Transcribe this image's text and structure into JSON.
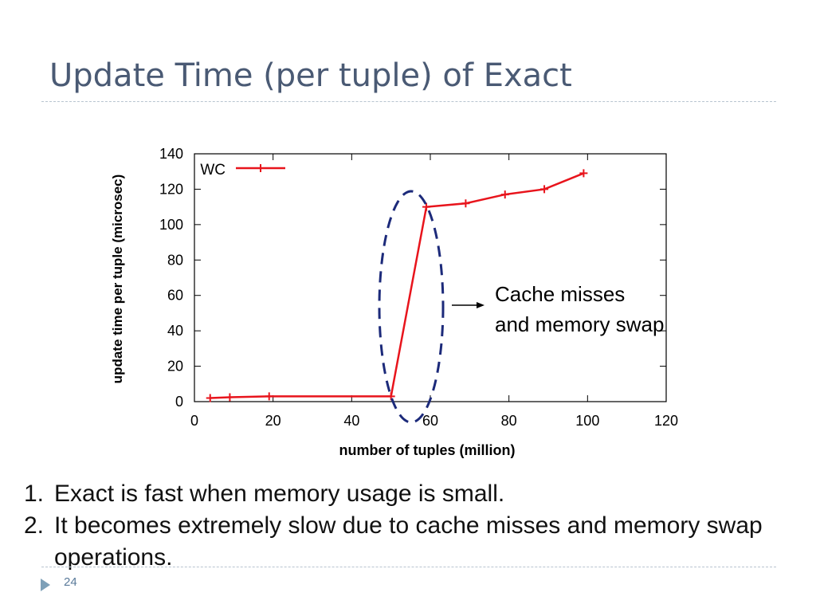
{
  "slide": {
    "title": "Update Time (per tuple) of Exact",
    "page_number": "24"
  },
  "bullets": [
    {
      "num": "1.",
      "text": "Exact is fast when memory usage is small."
    },
    {
      "num": "2.",
      "text": "It becomes extremely slow due to cache misses and memory swap operations."
    }
  ],
  "annotation": {
    "line1": "Cache misses",
    "line2": "and memory swap"
  },
  "colors": {
    "series": "#e8141c",
    "ellipse": "#1c2a7a",
    "title": "#4a5a74"
  },
  "chart_data": {
    "type": "line",
    "xlabel": "number of tuples (million)",
    "ylabel": "update time per tuple (microsec)",
    "xlim": [
      0,
      120
    ],
    "ylim": [
      0,
      140
    ],
    "xticks": [
      0,
      20,
      40,
      60,
      80,
      100,
      120
    ],
    "yticks": [
      0,
      20,
      40,
      60,
      80,
      100,
      120,
      140
    ],
    "legend_position": "top-left",
    "grid": false,
    "series": [
      {
        "name": "WC",
        "x": [
          4,
          9,
          19,
          50,
          59,
          69,
          79,
          89,
          99
        ],
        "y": [
          2,
          2.5,
          3,
          3,
          110,
          112,
          117,
          120,
          129
        ]
      }
    ]
  }
}
